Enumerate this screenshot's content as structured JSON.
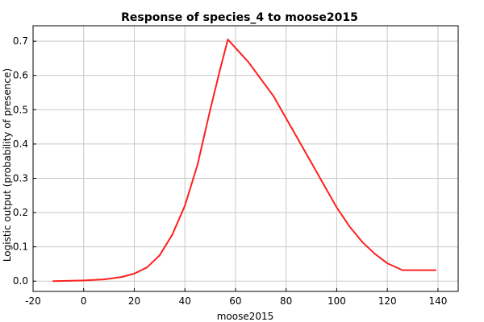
{
  "chart_data": {
    "type": "line",
    "title": "Response of species_4 to moose2015",
    "xlabel": "moose2015",
    "ylabel": "Logistic output (probability of presence)",
    "xlim": [
      -20,
      148
    ],
    "ylim": [
      -0.03,
      0.745
    ],
    "xticks": [
      -20,
      0,
      20,
      40,
      60,
      80,
      100,
      120,
      140
    ],
    "xtick_labels": [
      "-20",
      "0",
      "20",
      "40",
      "60",
      "80",
      "100",
      "120",
      "140"
    ],
    "yticks": [
      0.0,
      0.1,
      0.2,
      0.3,
      0.4,
      0.5,
      0.6,
      0.7
    ],
    "ytick_labels": [
      "0.0",
      "0.1",
      "0.2",
      "0.3",
      "0.4",
      "0.5",
      "0.6",
      "0.7"
    ],
    "grid": true,
    "series": [
      {
        "color": "#ff2020",
        "x": [
          -12,
          0,
          8,
          15,
          20,
          25,
          30,
          35,
          40,
          45,
          50,
          54,
          57,
          60,
          65,
          70,
          75,
          80,
          85,
          90,
          95,
          100,
          105,
          110,
          115,
          120,
          126,
          139
        ],
        "y": [
          0.0,
          0.002,
          0.005,
          0.012,
          0.022,
          0.04,
          0.075,
          0.135,
          0.22,
          0.34,
          0.5,
          0.62,
          0.705,
          0.68,
          0.64,
          0.59,
          0.54,
          0.475,
          0.41,
          0.345,
          0.28,
          0.215,
          0.16,
          0.115,
          0.08,
          0.052,
          0.032,
          0.032
        ]
      }
    ]
  }
}
